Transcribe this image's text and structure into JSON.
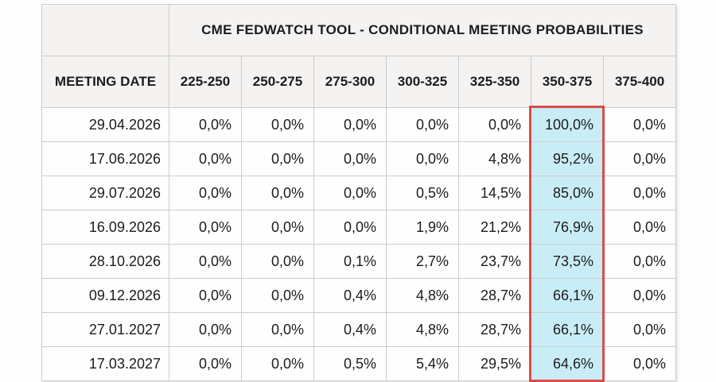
{
  "chart_data": {
    "type": "table",
    "title": "CME FEDWATCH TOOL - CONDITIONAL MEETING PROBABILITIES",
    "columns": [
      "MEETING DATE",
      "225-250",
      "250-275",
      "275-300",
      "300-325",
      "325-350",
      "350-375",
      "375-400"
    ],
    "rows": [
      {
        "date": "29.04.2026",
        "values": [
          "0,0%",
          "0,0%",
          "0,0%",
          "0,0%",
          "0,0%",
          "100,0%",
          "0,0%"
        ]
      },
      {
        "date": "17.06.2026",
        "values": [
          "0,0%",
          "0,0%",
          "0,0%",
          "0,0%",
          "4,8%",
          "95,2%",
          "0,0%"
        ]
      },
      {
        "date": "29.07.2026",
        "values": [
          "0,0%",
          "0,0%",
          "0,0%",
          "0,5%",
          "14,5%",
          "85,0%",
          "0,0%"
        ]
      },
      {
        "date": "16.09.2026",
        "values": [
          "0,0%",
          "0,0%",
          "0,0%",
          "1,9%",
          "21,2%",
          "76,9%",
          "0,0%"
        ]
      },
      {
        "date": "28.10.2026",
        "values": [
          "0,0%",
          "0,0%",
          "0,1%",
          "2,7%",
          "23,7%",
          "73,5%",
          "0,0%"
        ]
      },
      {
        "date": "09.12.2026",
        "values": [
          "0,0%",
          "0,0%",
          "0,4%",
          "4,8%",
          "28,7%",
          "66,1%",
          "0,0%"
        ]
      },
      {
        "date": "27.01.2027",
        "values": [
          "0,0%",
          "0,0%",
          "0,4%",
          "4,8%",
          "28,7%",
          "66,1%",
          "0,0%"
        ]
      },
      {
        "date": "17.03.2027",
        "values": [
          "0,0%",
          "0,0%",
          "0,5%",
          "5,4%",
          "29,5%",
          "64,6%",
          "0,0%"
        ]
      }
    ],
    "highlighted_column": "350-375",
    "layout": {
      "legend": "none",
      "grid": "on",
      "decimal_separator": ","
    },
    "colors": {
      "highlight_cell_bg": "#c9edf7",
      "highlight_frame_border": "#dc4b47",
      "header_bg": "#f5f3f1",
      "grid_line": "#cccccc",
      "text": "#1c1c1c"
    }
  }
}
